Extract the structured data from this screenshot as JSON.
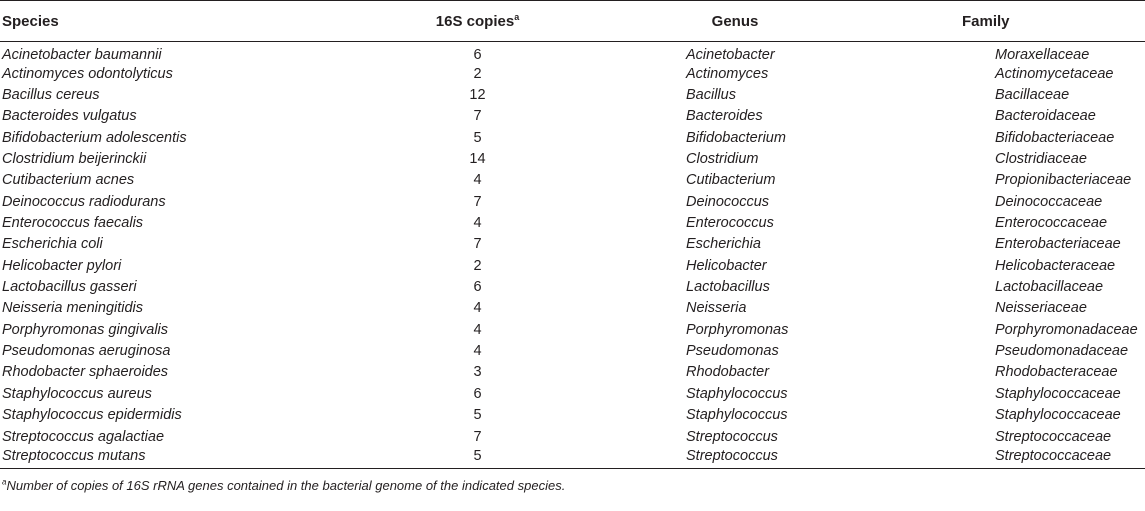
{
  "table": {
    "headers": {
      "species": "Species",
      "copies": "16S copies",
      "copies_marker": "a",
      "genus": "Genus",
      "family": "Family"
    },
    "rows": [
      {
        "species": "Acinetobacter baumannii",
        "copies": "6",
        "genus": "Acinetobacter",
        "family": "Moraxellaceae"
      },
      {
        "species": "Actinomyces odontolyticus",
        "copies": "2",
        "genus": "Actinomyces",
        "family": "Actinomycetaceae"
      },
      {
        "species": "Bacillus cereus",
        "copies": "12",
        "genus": "Bacillus",
        "family": "Bacillaceae"
      },
      {
        "species": "Bacteroides vulgatus",
        "copies": "7",
        "genus": "Bacteroides",
        "family": "Bacteroidaceae"
      },
      {
        "species": "Bifidobacterium adolescentis",
        "copies": "5",
        "genus": "Bifidobacterium",
        "family": "Bifidobacteriaceae"
      },
      {
        "species": "Clostridium beijerinckii",
        "copies": "14",
        "genus": "Clostridium",
        "family": "Clostridiaceae"
      },
      {
        "species": "Cutibacterium acnes",
        "copies": "4",
        "genus": "Cutibacterium",
        "family": "Propionibacteriaceae"
      },
      {
        "species": "Deinococcus radiodurans",
        "copies": "7",
        "genus": "Deinococcus",
        "family": "Deinococcaceae"
      },
      {
        "species": "Enterococcus faecalis",
        "copies": "4",
        "genus": "Enterococcus",
        "family": "Enterococcaceae"
      },
      {
        "species": "Escherichia coli",
        "copies": "7",
        "genus": "Escherichia",
        "family": "Enterobacteriaceae"
      },
      {
        "species": "Helicobacter pylori",
        "copies": "2",
        "genus": "Helicobacter",
        "family": "Helicobacteraceae"
      },
      {
        "species": "Lactobacillus gasseri",
        "copies": "6",
        "genus": "Lactobacillus",
        "family": "Lactobacillaceae"
      },
      {
        "species": "Neisseria meningitidis",
        "copies": "4",
        "genus": "Neisseria",
        "family": "Neisseriaceae"
      },
      {
        "species": "Porphyromonas gingivalis",
        "copies": "4",
        "genus": "Porphyromonas",
        "family": "Porphyromonadaceae"
      },
      {
        "species": "Pseudomonas aeruginosa",
        "copies": "4",
        "genus": "Pseudomonas",
        "family": "Pseudomonadaceae"
      },
      {
        "species": "Rhodobacter sphaeroides",
        "copies": "3",
        "genus": "Rhodobacter",
        "family": "Rhodobacteraceae"
      },
      {
        "species": "Staphylococcus aureus",
        "copies": "6",
        "genus": "Staphylococcus",
        "family": "Staphylococcaceae"
      },
      {
        "species": "Staphylococcus epidermidis",
        "copies": "5",
        "genus": "Staphylococcus",
        "family": "Staphylococcaceae"
      },
      {
        "species": "Streptococcus agalactiae",
        "copies": "7",
        "genus": "Streptococcus",
        "family": "Streptococcaceae"
      },
      {
        "species": "Streptococcus mutans",
        "copies": "5",
        "genus": "Streptococcus",
        "family": "Streptococcaceae"
      }
    ]
  },
  "footnote": {
    "marker": "a",
    "text": "Number of copies of 16S rRNA genes contained in the bacterial genome of the indicated species."
  }
}
